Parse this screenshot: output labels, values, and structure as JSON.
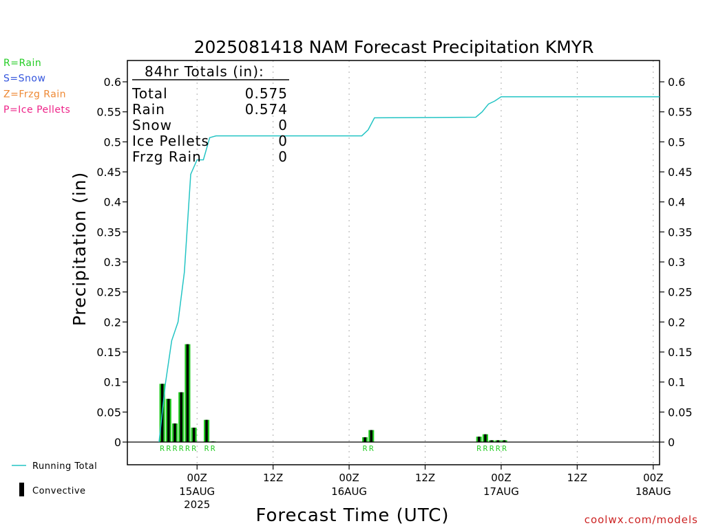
{
  "chart_data": {
    "type": "bar",
    "title": "2025081418 NAM Forecast Precipitation KMYR",
    "xlabel": "Forecast Time (UTC)",
    "ylabel": "Precipitation (in)",
    "ylim": [
      0,
      0.63
    ],
    "yticks": [
      0,
      0.05,
      0.1,
      0.15,
      0.2,
      0.25,
      0.3,
      0.35,
      0.4,
      0.45,
      0.5,
      0.55,
      0.6
    ],
    "ytick_labels": [
      "0",
      "0.05",
      "0.1",
      "0.15",
      "0.2",
      "0.25",
      "0.3",
      "0.35",
      "0.4",
      "0.45",
      "0.5",
      "0.55",
      "0.6"
    ],
    "xlim_hours": [
      -5,
      79
    ],
    "xticks": [
      {
        "hour": 6,
        "label": "00Z",
        "sub": "15AUG",
        "sub2": "2025"
      },
      {
        "hour": 18,
        "label": "12Z",
        "sub": "",
        "sub2": ""
      },
      {
        "hour": 30,
        "label": "00Z",
        "sub": "16AUG",
        "sub2": ""
      },
      {
        "hour": 42,
        "label": "12Z",
        "sub": "",
        "sub2": ""
      },
      {
        "hour": 54,
        "label": "00Z",
        "sub": "17AUG",
        "sub2": ""
      },
      {
        "hour": 66,
        "label": "12Z",
        "sub": "",
        "sub2": ""
      },
      {
        "hour": 78,
        "label": "00Z",
        "sub": "18AUG",
        "sub2": ""
      }
    ],
    "bars": [
      {
        "hour": 1,
        "value": 0.097,
        "ptype": "R"
      },
      {
        "hour": 2,
        "value": 0.072,
        "ptype": "R"
      },
      {
        "hour": 3,
        "value": 0.031,
        "ptype": "R"
      },
      {
        "hour": 4,
        "value": 0.083,
        "ptype": "R"
      },
      {
        "hour": 5,
        "value": 0.163,
        "ptype": "R"
      },
      {
        "hour": 6,
        "value": 0.024,
        "ptype": "R"
      },
      {
        "hour": 8,
        "value": 0.037,
        "ptype": "R"
      },
      {
        "hour": 9,
        "value": 0.001,
        "ptype": "R"
      },
      {
        "hour": 33,
        "value": 0.008,
        "ptype": "R"
      },
      {
        "hour": 34,
        "value": 0.02,
        "ptype": "R"
      },
      {
        "hour": 51,
        "value": 0.009,
        "ptype": "R"
      },
      {
        "hour": 52,
        "value": 0.013,
        "ptype": "R"
      },
      {
        "hour": 53,
        "value": 0.003,
        "ptype": "R"
      },
      {
        "hour": 54,
        "value": 0.003,
        "ptype": "R"
      },
      {
        "hour": 55,
        "value": 0.003,
        "ptype": "R"
      }
    ],
    "running_total": {
      "name": "Running Total",
      "x": [
        0,
        1,
        2,
        3,
        4,
        5,
        6,
        7,
        8,
        9,
        32,
        33,
        34,
        50,
        51,
        52,
        53,
        54,
        79
      ],
      "y": [
        0.0,
        0.097,
        0.169,
        0.2,
        0.283,
        0.446,
        0.47,
        0.47,
        0.507,
        0.51,
        0.51,
        0.52,
        0.54,
        0.541,
        0.55,
        0.563,
        0.568,
        0.575,
        0.575
      ]
    },
    "precip_type_labels": [
      {
        "hour": 1,
        "text": "R"
      },
      {
        "hour": 2,
        "text": "R"
      },
      {
        "hour": 3,
        "text": "R"
      },
      {
        "hour": 4,
        "text": "R"
      },
      {
        "hour": 5,
        "text": "R"
      },
      {
        "hour": 6,
        "text": "R"
      },
      {
        "hour": 8,
        "text": "R"
      },
      {
        "hour": 9,
        "text": "R"
      },
      {
        "hour": 33,
        "text": "R"
      },
      {
        "hour": 34,
        "text": "R"
      },
      {
        "hour": 51,
        "text": "R"
      },
      {
        "hour": 52,
        "text": "R"
      },
      {
        "hour": 53,
        "text": "R"
      },
      {
        "hour": 54,
        "text": "R"
      },
      {
        "hour": 55,
        "text": "R"
      }
    ],
    "totals_box": {
      "heading": "84hr Totals (in):",
      "rows": [
        {
          "label": "Total",
          "value": "0.575"
        },
        {
          "label": "Rain",
          "value": "0.574"
        },
        {
          "label": "Snow",
          "value": "0"
        },
        {
          "label": "Ice Pellets",
          "value": "0"
        },
        {
          "label": "Frzg Rain",
          "value": "0"
        }
      ]
    },
    "type_legend": [
      {
        "text": "R=Rain",
        "color": "#22cc22"
      },
      {
        "text": "S=Snow",
        "color": "#3355dd"
      },
      {
        "text": "Z=Frzg Rain",
        "color": "#ee8833"
      },
      {
        "text": "P=Ice Pellets",
        "color": "#ee2288"
      }
    ],
    "legend": {
      "running_total_label": "Running Total",
      "convective_label": "Convective"
    },
    "colors": {
      "rain_bar": "#22cc22",
      "convective": "#000000",
      "running_total": "#22c4c4",
      "grid": "#aaaaaa",
      "credit": "#cc2222"
    },
    "credit": "coolwx.com/models",
    "grid": true
  }
}
